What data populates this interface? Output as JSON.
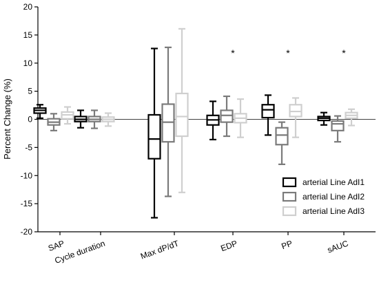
{
  "chart_data": {
    "type": "boxplot",
    "ylabel": "Percent Change (%)",
    "ylim": [
      -20,
      20
    ],
    "yticks": [
      -20,
      -15,
      -10,
      -5,
      0,
      5,
      10,
      15,
      20
    ],
    "zero_line": true,
    "legend_position": "bottom-right",
    "categories": [
      "SAP",
      "Cycle duration",
      "Max dP/dT",
      "EDP",
      "PP",
      "sAUC"
    ],
    "series": [
      {
        "name": "arterial Line AdI1",
        "color": "#000000",
        "boxes": [
          {
            "min": 0.2,
            "q1": 1.1,
            "median": 1.6,
            "q3": 2.0,
            "max": 2.6
          },
          {
            "min": -1.5,
            "q1": -0.4,
            "median": 0.0,
            "q3": 0.5,
            "max": 1.6
          },
          {
            "min": -17.5,
            "q1": -7.0,
            "median": -3.5,
            "q3": 0.8,
            "max": 12.6
          },
          {
            "min": -3.6,
            "q1": -1.0,
            "median": -0.1,
            "q3": 0.7,
            "max": 3.2
          },
          {
            "min": -2.8,
            "q1": 0.3,
            "median": 1.7,
            "q3": 2.6,
            "max": 4.3
          },
          {
            "min": -1.0,
            "q1": -0.2,
            "median": 0.2,
            "q3": 0.5,
            "max": 1.2
          }
        ]
      },
      {
        "name": "arterial Line AdI2",
        "color": "#7a7a7a",
        "boxes": [
          {
            "min": -2.0,
            "q1": -1.0,
            "median": -0.5,
            "q3": 0.1,
            "max": 1.0
          },
          {
            "min": -1.6,
            "q1": -0.4,
            "median": 0.0,
            "q3": 0.5,
            "max": 1.6
          },
          {
            "min": -13.7,
            "q1": -4.0,
            "median": -0.5,
            "q3": 2.7,
            "max": 12.8
          },
          {
            "min": -3.0,
            "q1": -0.5,
            "median": 0.7,
            "q3": 1.6,
            "max": 4.1
          },
          {
            "min": -8.0,
            "q1": -4.5,
            "median": -2.8,
            "q3": -1.5,
            "max": -0.5
          },
          {
            "min": -4.0,
            "q1": -2.0,
            "median": -0.8,
            "q3": -0.3,
            "max": 0.6
          }
        ]
      },
      {
        "name": "arterial Line AdI3",
        "color": "#cfcfcf",
        "boxes": [
          {
            "min": -0.8,
            "q1": 0.1,
            "median": 0.8,
            "q3": 1.3,
            "max": 2.2
          },
          {
            "min": -1.2,
            "q1": -0.4,
            "median": 0.0,
            "q3": 0.4,
            "max": 1.1
          },
          {
            "min": -13.0,
            "q1": -3.0,
            "median": 0.5,
            "q3": 4.6,
            "max": 16.1
          },
          {
            "min": -3.2,
            "q1": -0.6,
            "median": 0.2,
            "q3": 1.0,
            "max": 3.6
          },
          {
            "min": -3.2,
            "q1": 0.5,
            "median": 1.4,
            "q3": 2.6,
            "max": 3.8
          },
          {
            "min": -1.1,
            "q1": 0.2,
            "median": 0.7,
            "q3": 1.2,
            "max": 1.8
          }
        ]
      }
    ],
    "annotations": [
      {
        "category": "EDP",
        "text": "*"
      },
      {
        "category": "PP",
        "text": "*"
      },
      {
        "category": "sAUC",
        "text": "*"
      }
    ]
  }
}
